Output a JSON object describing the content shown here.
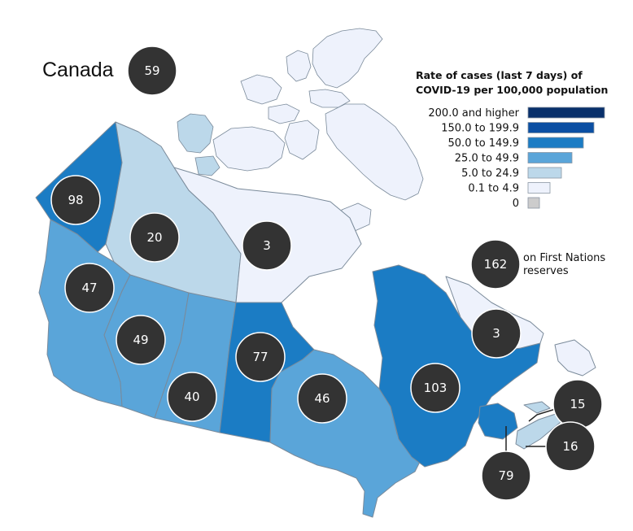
{
  "title": "Canada",
  "national_rate": "59",
  "colors": {
    "200.0 and higher": "#08306b",
    "150.0 to 199.9": "#0b4fa3",
    "50.0 to 149.9": "#1b7cc4",
    "25.0 to 49.9": "#5aa5d9",
    "5.0 to 24.9": "#bcd8ea",
    "0.1 to 4.9": "#eef2fc",
    "0": "#cccccc"
  },
  "legend": {
    "title_line1": "Rate of cases (last 7 days) of",
    "title_line2": "COVID-19 per 100,000 population",
    "items": [
      {
        "label": "200.0 and higher",
        "color": "#08306b"
      },
      {
        "label": "150.0 to 199.9",
        "color": "#0b4fa3"
      },
      {
        "label": "50.0 to 149.9",
        "color": "#1b7cc4"
      },
      {
        "label": "25.0 to 49.9",
        "color": "#5aa5d9"
      },
      {
        "label": "5.0 to 24.9",
        "color": "#bcd8ea"
      },
      {
        "label": "0.1 to 4.9",
        "color": "#eef2fc"
      },
      {
        "label": "0",
        "color": "#cccccc"
      }
    ]
  },
  "first_nations": {
    "rate": "162",
    "label_line1": "on First Nations",
    "label_line2": "reserves"
  },
  "regions": {
    "yukon": {
      "rate": "98",
      "class": "50.0 to 149.9"
    },
    "northwest_territories": {
      "rate": "20",
      "class": "5.0 to 24.9"
    },
    "nunavut": {
      "rate": "3",
      "class": "0.1 to 4.9"
    },
    "british_columbia": {
      "rate": "47",
      "class": "25.0 to 49.9"
    },
    "alberta": {
      "rate": "49",
      "class": "25.0 to 49.9"
    },
    "saskatchewan": {
      "rate": "40",
      "class": "25.0 to 49.9"
    },
    "manitoba": {
      "rate": "77",
      "class": "50.0 to 149.9"
    },
    "ontario": {
      "rate": "46",
      "class": "25.0 to 49.9"
    },
    "quebec": {
      "rate": "103",
      "class": "50.0 to 149.9"
    },
    "newfoundland_and_labrador": {
      "rate": "3",
      "class": "0.1 to 4.9"
    },
    "prince_edward_island": {
      "rate": "15",
      "class": "5.0 to 24.9"
    },
    "nova_scotia": {
      "rate": "16",
      "class": "5.0 to 24.9"
    },
    "new_brunswick": {
      "rate": "79",
      "class": "50.0 to 149.9"
    }
  }
}
